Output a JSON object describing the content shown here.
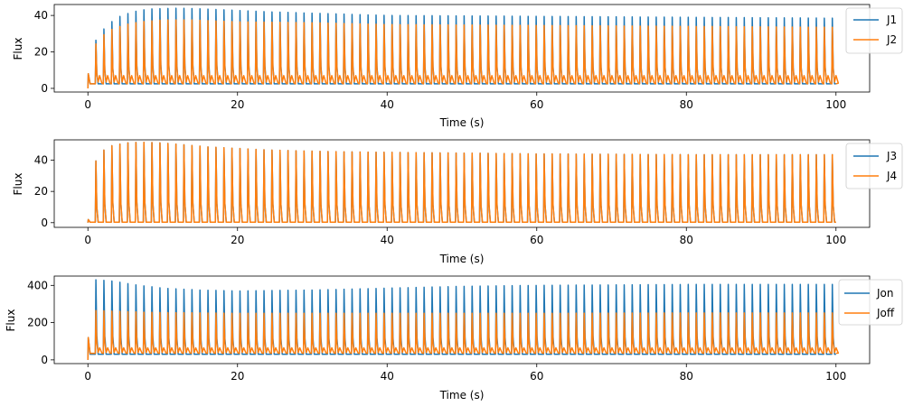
{
  "chart_data": [
    {
      "type": "line",
      "xlabel": "Time (s)",
      "ylabel": "Flux",
      "xlim": [
        -4.5,
        104.5
      ],
      "ylim": [
        -2,
        46
      ],
      "xticks": [
        0,
        20,
        40,
        60,
        80,
        100
      ],
      "yticks": [
        0,
        20,
        40
      ],
      "grid": false,
      "legend_position": "top-right-outside",
      "period": 1.07,
      "duration": 100,
      "series": [
        {
          "name": "J1",
          "color": "#1f77b4",
          "peak_envelope": [
            [
              0,
              8
            ],
            [
              1,
              26
            ],
            [
              2,
              32
            ],
            [
              3,
              36
            ],
            [
              4,
              39
            ],
            [
              6,
              42
            ],
            [
              8,
              43.5
            ],
            [
              12,
              44
            ],
            [
              16,
              43.5
            ],
            [
              24,
              42
            ],
            [
              32,
              41
            ],
            [
              40,
              40
            ],
            [
              60,
              39.5
            ],
            [
              80,
              39
            ],
            [
              100,
              38.5
            ]
          ],
          "baseline": 2.5
        },
        {
          "name": "J2",
          "color": "#ff7f0e",
          "peak_envelope": [
            [
              0,
              8
            ],
            [
              1,
              24
            ],
            [
              2,
              29
            ],
            [
              3,
              32
            ],
            [
              5,
              35
            ],
            [
              7,
              36.5
            ],
            [
              10,
              37.5
            ],
            [
              14,
              37.5
            ],
            [
              20,
              36.5
            ],
            [
              30,
              36
            ],
            [
              40,
              35
            ],
            [
              60,
              34.5
            ],
            [
              80,
              34
            ],
            [
              100,
              33.5
            ]
          ],
          "baseline": 2.5,
          "secondary_peak": 7,
          "secondary_min": 3.5
        }
      ]
    },
    {
      "type": "line",
      "xlabel": "Time (s)",
      "ylabel": "Flux",
      "xlim": [
        -4.5,
        104.5
      ],
      "ylim": [
        -3,
        53
      ],
      "xticks": [
        0,
        20,
        40,
        60,
        80,
        100
      ],
      "yticks": [
        0,
        20,
        40
      ],
      "grid": false,
      "legend_position": "top-right-outside",
      "period": 1.07,
      "duration": 100,
      "series": [
        {
          "name": "J3",
          "color": "#1f77b4",
          "peak_envelope": [
            [
              0,
              2
            ],
            [
              1,
              39
            ],
            [
              2,
              46
            ],
            [
              3,
              49
            ],
            [
              5,
              51
            ],
            [
              7,
              51.5
            ],
            [
              10,
              51
            ],
            [
              16,
              48.5
            ],
            [
              24,
              46.5
            ],
            [
              32,
              45.5
            ],
            [
              40,
              45
            ],
            [
              60,
              44
            ],
            [
              80,
              43.5
            ],
            [
              100,
              43.5
            ]
          ],
          "baseline": 0.3
        },
        {
          "name": "J4",
          "color": "#ff7f0e",
          "peak_envelope": [
            [
              0,
              2
            ],
            [
              1,
              39
            ],
            [
              2,
              46
            ],
            [
              3,
              49
            ],
            [
              5,
              51
            ],
            [
              7,
              51.5
            ],
            [
              10,
              51
            ],
            [
              16,
              48.5
            ],
            [
              24,
              46.5
            ],
            [
              32,
              45.5
            ],
            [
              40,
              45
            ],
            [
              60,
              44
            ],
            [
              80,
              43.5
            ],
            [
              100,
              43.5
            ]
          ],
          "baseline": 0.3
        }
      ]
    },
    {
      "type": "line",
      "xlabel": "Time (s)",
      "ylabel": "Flux",
      "xlim": [
        -4.5,
        104.5
      ],
      "ylim": [
        -20,
        450
      ],
      "xticks": [
        0,
        20,
        40,
        60,
        80,
        100
      ],
      "yticks": [
        0,
        200,
        400
      ],
      "grid": false,
      "legend_position": "top-right-outside",
      "period": 1.07,
      "duration": 100,
      "series": [
        {
          "name": "Jon",
          "color": "#1f77b4",
          "peak_envelope": [
            [
              0,
              120
            ],
            [
              1,
              430
            ],
            [
              3,
              425
            ],
            [
              6,
              405
            ],
            [
              10,
              385
            ],
            [
              15,
              375
            ],
            [
              20,
              370
            ],
            [
              30,
              375
            ],
            [
              40,
              385
            ],
            [
              50,
              395
            ],
            [
              60,
              400
            ],
            [
              80,
              405
            ],
            [
              100,
              405
            ]
          ],
          "baseline": 30
        },
        {
          "name": "Joff",
          "color": "#ff7f0e",
          "peak_envelope": [
            [
              0,
              120
            ],
            [
              1,
              265
            ],
            [
              3,
              262
            ],
            [
              8,
              255
            ],
            [
              20,
              250
            ],
            [
              40,
              250
            ],
            [
              60,
              250
            ],
            [
              80,
              252
            ],
            [
              100,
              252
            ]
          ],
          "baseline": 35,
          "secondary_peak": 65,
          "secondary_min": 40
        }
      ]
    }
  ]
}
